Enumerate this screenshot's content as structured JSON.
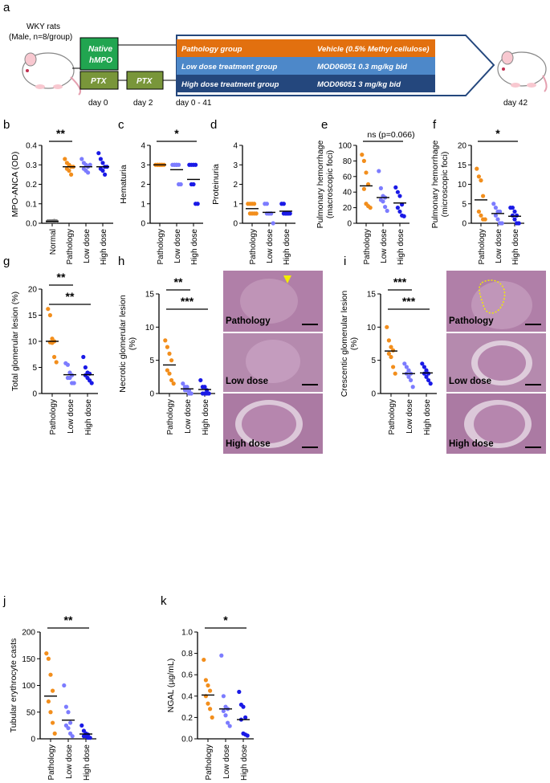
{
  "colors": {
    "pathology": "#f28e1c",
    "low": "#7c7cff",
    "high": "#1a1ae6",
    "normal": "#808080",
    "orange_bar": "#e2700f",
    "mid_bar": "#4d88c9",
    "dark_bar": "#24477d",
    "green_box": "#21a550",
    "olive_box": "#79963a",
    "histo": "#b07fa8"
  },
  "schematic": {
    "panel_letter": "a",
    "rat_title": "WKY rats",
    "rat_sub": "(Male, n=8/group)",
    "native_line1": "Native",
    "native_line2": "hMPO",
    "ptx1": "PTX",
    "ptx2": "PTX",
    "group1": "Pathology group",
    "vehicle": "Vehicle (0.5% Methyl cellulose)",
    "group2": "Low dose treatment group",
    "dose_low": "MOD06051 0.3 mg/kg bid",
    "group3": "High dose treatment group",
    "dose_high": "MOD06051   3 mg/kg bid",
    "day0": "day 0",
    "day2": "day 2",
    "day_range": "day 0 - 41",
    "day42": "day 42"
  },
  "histology_labels": {
    "pathology": "Pathology",
    "low": "Low dose",
    "high": "High dose"
  },
  "chart_data": [
    {
      "panel": "b",
      "type": "scatter",
      "ylabel": "MPO-ANCA (OD)",
      "categories": [
        "Normal",
        "Pathology",
        "Low dose",
        "High dose"
      ],
      "ylim": [
        0,
        0.4
      ],
      "yticks": [
        "0.0",
        "0.1",
        "0.2",
        "0.3",
        "0.4"
      ],
      "points": [
        [
          0.01,
          0.01,
          0.01,
          0.012,
          0.01,
          0.01,
          0.011,
          0.01
        ],
        [
          0.33,
          0.31,
          0.3,
          0.29,
          0.28,
          0.27,
          0.25,
          0.29
        ],
        [
          0.33,
          0.31,
          0.3,
          0.29,
          0.28,
          0.27,
          0.26,
          0.3
        ],
        [
          0.36,
          0.33,
          0.31,
          0.29,
          0.28,
          0.27,
          0.25,
          0.29
        ]
      ],
      "means": [
        0.01,
        0.29,
        0.29,
        0.29
      ],
      "significance": [
        {
          "label": "**",
          "from": 0,
          "to": 1
        }
      ]
    },
    {
      "panel": "c",
      "type": "scatter",
      "ylabel": "Hematuria",
      "categories": [
        "Pathology",
        "Low dose",
        "High dose"
      ],
      "ylim": [
        0,
        4
      ],
      "yticks": [
        "0",
        "1",
        "2",
        "3",
        "4"
      ],
      "points": [
        [
          3,
          3,
          3,
          3,
          3,
          3,
          3,
          3
        ],
        [
          3,
          3,
          3,
          3,
          3,
          3,
          2,
          2
        ],
        [
          3,
          3,
          3,
          3,
          2,
          2,
          1,
          1
        ]
      ],
      "means": [
        3,
        2.75,
        2.25
      ],
      "significance": [
        {
          "label": "*",
          "from": 0,
          "to": 2
        }
      ]
    },
    {
      "panel": "d",
      "type": "scatter",
      "ylabel": "Proteinuria",
      "categories": [
        "Pathology",
        "Low dose",
        "High dose"
      ],
      "ylim": [
        0,
        4
      ],
      "yticks": [
        "0",
        "1",
        "2",
        "3",
        "4"
      ],
      "points": [
        [
          1,
          1,
          1,
          1,
          0.5,
          0.5,
          0.5,
          0.5
        ],
        [
          1,
          1,
          0.5,
          0.5,
          0.5,
          0.5,
          0.5,
          0
        ],
        [
          1,
          1,
          0.5,
          0.5,
          0.5,
          0.5,
          0.5,
          0.5
        ]
      ],
      "means": [
        0.75,
        0.56,
        0.62
      ],
      "significance": []
    },
    {
      "panel": "e",
      "type": "scatter",
      "ylabel": "Pulmonary hemorrhage (macroscopic foci)",
      "categories": [
        "Pathology",
        "Low dose",
        "High dose"
      ],
      "ylim": [
        0,
        100
      ],
      "yticks": [
        "0",
        "20",
        "40",
        "60",
        "80",
        "100"
      ],
      "points": [
        [
          88,
          80,
          65,
          50,
          44,
          25,
          22,
          20
        ],
        [
          67,
          45,
          35,
          33,
          30,
          28,
          21,
          16
        ],
        [
          46,
          40,
          35,
          24,
          20,
          15,
          10,
          9
        ]
      ],
      "means": [
        48,
        33,
        26
      ],
      "significance": [
        {
          "label": "ns (p=0.066)",
          "from": 0,
          "to": 2
        }
      ]
    },
    {
      "panel": "f",
      "type": "scatter",
      "ylabel": "Pulmonary hemorrhage (microscopic foci)",
      "categories": [
        "Pathology",
        "Low dose",
        "High dose"
      ],
      "ylim": [
        0,
        20
      ],
      "yticks": [
        "0",
        "5",
        "10",
        "15",
        "20"
      ],
      "points": [
        [
          14,
          12,
          11,
          7,
          3,
          2,
          1,
          1
        ],
        [
          5,
          4,
          3,
          3,
          2,
          1,
          0,
          0
        ],
        [
          4,
          4,
          3,
          2,
          2,
          1,
          0,
          0
        ]
      ],
      "means": [
        6,
        2.5,
        1.8
      ],
      "significance": [
        {
          "label": "*",
          "from": 0,
          "to": 2
        }
      ]
    },
    {
      "panel": "g",
      "type": "scatter",
      "ylabel": "Total glomerular lesion (%)",
      "categories": [
        "Pathology",
        "Low dose",
        "High dose"
      ],
      "ylim": [
        0,
        20
      ],
      "yticks": [
        "0",
        "5",
        "10",
        "15",
        "20"
      ],
      "points": [
        [
          16.2,
          15,
          10.5,
          10,
          9.8,
          9.7,
          7,
          6
        ],
        [
          5.8,
          5.5,
          4,
          3.5,
          3,
          3,
          2,
          2
        ],
        [
          7,
          5,
          4,
          3.8,
          3.5,
          3,
          2.5,
          2
        ]
      ],
      "means": [
        10,
        3.6,
        3.6
      ],
      "significance": [
        {
          "label": "**",
          "from": 0,
          "to": 1
        },
        {
          "label": "**",
          "from": 0,
          "to": 2
        }
      ]
    },
    {
      "panel": "h",
      "type": "scatter",
      "ylabel": "Necrotic glomerular lesion (%)",
      "categories": [
        "Pathology",
        "Low dose",
        "High dose"
      ],
      "ylim": [
        0,
        15
      ],
      "yticks": [
        "0",
        "5",
        "10",
        "15"
      ],
      "points": [
        [
          8,
          7,
          6,
          5,
          3.5,
          3,
          2,
          1.5
        ],
        [
          1.5,
          1,
          1,
          0.5,
          0.5,
          0.5,
          0,
          0
        ],
        [
          2,
          1,
          1,
          0.5,
          0,
          0,
          0,
          0
        ]
      ],
      "means": [
        4.3,
        0.7,
        0.6
      ],
      "significance": [
        {
          "label": "**",
          "from": 0,
          "to": 1
        },
        {
          "label": "***",
          "from": 0,
          "to": 2
        }
      ]
    },
    {
      "panel": "i",
      "type": "scatter",
      "ylabel": "Crescentic glomerular lesion (%)",
      "categories": [
        "Pathology",
        "Low dose",
        "High dose"
      ],
      "ylim": [
        0,
        15
      ],
      "yticks": [
        "0",
        "5",
        "10",
        "15"
      ],
      "points": [
        [
          10,
          8,
          7,
          6.5,
          6,
          5.5,
          4,
          3
        ],
        [
          4.5,
          4,
          3.5,
          3,
          3,
          2.5,
          2,
          1
        ],
        [
          4.5,
          4,
          3.5,
          3,
          3,
          2.5,
          2,
          1.5
        ]
      ],
      "means": [
        6.4,
        3.0,
        3.1
      ],
      "significance": [
        {
          "label": "***",
          "from": 0,
          "to": 1
        },
        {
          "label": "***",
          "from": 0,
          "to": 2
        }
      ]
    },
    {
      "panel": "j",
      "type": "scatter",
      "ylabel": "Tubular erythrocyte casts",
      "categories": [
        "Pathology",
        "Low dose",
        "High dose"
      ],
      "ylim": [
        0,
        200
      ],
      "yticks": [
        "0",
        "50",
        "100",
        "150",
        "200"
      ],
      "points": [
        [
          160,
          150,
          120,
          90,
          70,
          50,
          30,
          10
        ],
        [
          100,
          60,
          50,
          30,
          25,
          20,
          10,
          5
        ],
        [
          25,
          15,
          10,
          8,
          5,
          5,
          2,
          2
        ]
      ],
      "means": [
        80,
        35,
        9
      ],
      "significance": [
        {
          "label": "**",
          "from": 0,
          "to": 2
        }
      ]
    },
    {
      "panel": "k",
      "type": "scatter",
      "ylabel": "NGAL (µg/mL)",
      "categories": [
        "Pathology",
        "Low dose",
        "High dose"
      ],
      "ylim": [
        0,
        1.0
      ],
      "yticks": [
        "0.0",
        "0.2",
        "0.4",
        "0.6",
        "0.8",
        "1.0"
      ],
      "points": [
        [
          0.74,
          0.55,
          0.5,
          0.45,
          0.4,
          0.33,
          0.28,
          0.2
        ],
        [
          0.78,
          0.4,
          0.3,
          0.28,
          0.26,
          0.22,
          0.15,
          0.12
        ],
        [
          0.44,
          0.32,
          0.3,
          0.2,
          0.18,
          0.05,
          0.04,
          0.03
        ]
      ],
      "means": [
        0.41,
        0.28,
        0.18
      ],
      "significance": [
        {
          "label": "*",
          "from": 0,
          "to": 2
        }
      ]
    }
  ]
}
